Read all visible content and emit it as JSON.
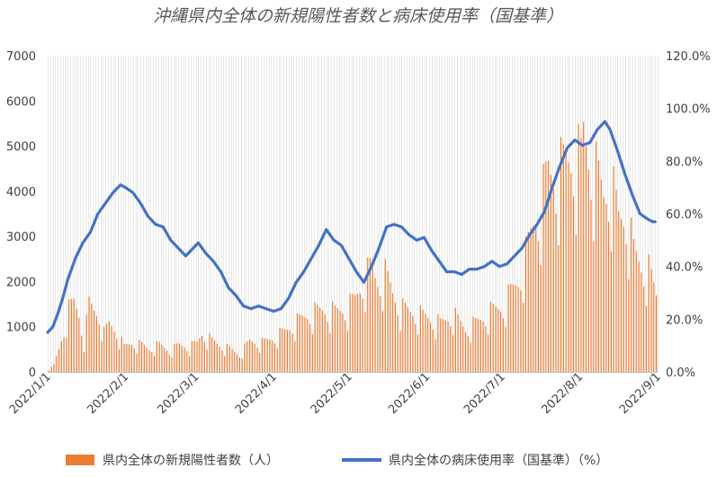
{
  "chart_data": {
    "type": "bar+line",
    "title": "沖縄県内全体の新規陽性者数と病床使用率（国基準）",
    "legend": {
      "position": "bottom",
      "entries": [
        "県内全体の新規陽性者数（人）",
        "県内全体の病床使用率（国基準）（%）"
      ]
    },
    "x_axis": {
      "start": "2022-01-01",
      "end": "2022-09-01",
      "tick_labels": [
        "2022/1/1",
        "2022/2/1",
        "2022/3/1",
        "2022/4/1",
        "2022/5/1",
        "2022/6/1",
        "2022/7/1",
        "2022/8/1",
        "2022/9/1"
      ]
    },
    "y_left": {
      "range": [
        0,
        7000
      ],
      "tick_labels": [
        "0",
        "1000",
        "2000",
        "3000",
        "4000",
        "5000",
        "6000",
        "7000"
      ]
    },
    "y_right": {
      "range": [
        0,
        120
      ],
      "tick_labels": [
        "0.0%",
        "20.0%",
        "40.0%",
        "60.0%",
        "80.0%",
        "100.0%",
        "120.0%"
      ]
    },
    "grid": "vertical",
    "colors": {
      "bars": "#ED7D31",
      "line": "#4472C4",
      "grid": "#D9D9D9",
      "text": "#595959"
    },
    "series": [
      {
        "name": "県内全体の新規陽性者数（人）",
        "kind": "bar",
        "axis": "left",
        "anchors": [
          [
            "2022-01-01",
            50
          ],
          [
            "2022-01-03",
            180
          ],
          [
            "2022-01-05",
            600
          ],
          [
            "2022-01-07",
            1100
          ],
          [
            "2022-01-09",
            1600
          ],
          [
            "2022-01-11",
            1800
          ],
          [
            "2022-01-13",
            1500
          ],
          [
            "2022-01-15",
            800
          ],
          [
            "2022-01-17",
            1750
          ],
          [
            "2022-01-19",
            1600
          ],
          [
            "2022-01-21",
            1500
          ],
          [
            "2022-01-23",
            1000
          ],
          [
            "2022-01-25",
            1250
          ],
          [
            "2022-01-28",
            1050
          ],
          [
            "2022-01-31",
            650
          ],
          [
            "2022-02-03",
            750
          ],
          [
            "2022-02-07",
            700
          ],
          [
            "2022-02-10",
            600
          ],
          [
            "2022-02-14",
            700
          ],
          [
            "2022-02-18",
            550
          ],
          [
            "2022-02-22",
            700
          ],
          [
            "2022-02-26",
            650
          ],
          [
            "2022-03-01",
            750
          ],
          [
            "2022-03-03",
            1000
          ],
          [
            "2022-03-06",
            850
          ],
          [
            "2022-03-10",
            700
          ],
          [
            "2022-03-14",
            600
          ],
          [
            "2022-03-18",
            450
          ],
          [
            "2022-03-22",
            800
          ],
          [
            "2022-03-27",
            750
          ],
          [
            "2022-04-01",
            900
          ],
          [
            "2022-04-05",
            1050
          ],
          [
            "2022-04-10",
            1300
          ],
          [
            "2022-04-15",
            1500
          ],
          [
            "2022-04-20",
            1600
          ],
          [
            "2022-04-25",
            1550
          ],
          [
            "2022-04-30",
            1650
          ],
          [
            "2022-05-03",
            1900
          ],
          [
            "2022-05-06",
            2300
          ],
          [
            "2022-05-09",
            2650
          ],
          [
            "2022-05-12",
            2350
          ],
          [
            "2022-05-15",
            2500
          ],
          [
            "2022-05-18",
            2050
          ],
          [
            "2022-05-21",
            1650
          ],
          [
            "2022-05-26",
            1550
          ],
          [
            "2022-06-01",
            1400
          ],
          [
            "2022-06-06",
            1250
          ],
          [
            "2022-06-11",
            1500
          ],
          [
            "2022-06-16",
            1100
          ],
          [
            "2022-06-21",
            1300
          ],
          [
            "2022-06-26",
            1550
          ],
          [
            "2022-07-01",
            1700
          ],
          [
            "2022-07-04",
            2050
          ],
          [
            "2022-07-07",
            2350
          ],
          [
            "2022-07-10",
            3000
          ],
          [
            "2022-07-13",
            3800
          ],
          [
            "2022-07-16",
            4300
          ],
          [
            "2022-07-19",
            5200
          ],
          [
            "2022-07-22",
            5000
          ],
          [
            "2022-07-26",
            5400
          ],
          [
            "2022-07-29",
            5550
          ],
          [
            "2022-08-01",
            5450
          ],
          [
            "2022-08-02",
            6150
          ],
          [
            "2022-08-04",
            5600
          ],
          [
            "2022-08-07",
            5100
          ],
          [
            "2022-08-10",
            4550
          ],
          [
            "2022-08-13",
            4850
          ],
          [
            "2022-08-16",
            3950
          ],
          [
            "2022-08-19",
            4050
          ],
          [
            "2022-08-22",
            3100
          ],
          [
            "2022-08-25",
            2750
          ],
          [
            "2022-08-28",
            2600
          ],
          [
            "2022-08-31",
            2000
          ]
        ]
      },
      {
        "name": "県内全体の病床使用率（国基準）（%）",
        "kind": "line",
        "axis": "right",
        "points": [
          [
            "2022-01-01",
            15
          ],
          [
            "2022-01-03",
            17
          ],
          [
            "2022-01-05",
            22
          ],
          [
            "2022-01-07",
            28
          ],
          [
            "2022-01-09",
            35
          ],
          [
            "2022-01-12",
            43
          ],
          [
            "2022-01-15",
            49
          ],
          [
            "2022-01-18",
            53
          ],
          [
            "2022-01-21",
            60
          ],
          [
            "2022-01-24",
            64
          ],
          [
            "2022-01-27",
            68
          ],
          [
            "2022-01-30",
            71
          ],
          [
            "2022-02-01",
            70
          ],
          [
            "2022-02-04",
            68
          ],
          [
            "2022-02-07",
            64
          ],
          [
            "2022-02-10",
            59
          ],
          [
            "2022-02-13",
            56
          ],
          [
            "2022-02-16",
            55
          ],
          [
            "2022-02-19",
            50
          ],
          [
            "2022-02-22",
            47
          ],
          [
            "2022-02-25",
            44
          ],
          [
            "2022-02-28",
            47
          ],
          [
            "2022-03-02",
            49
          ],
          [
            "2022-03-05",
            45
          ],
          [
            "2022-03-08",
            42
          ],
          [
            "2022-03-11",
            38
          ],
          [
            "2022-03-14",
            32
          ],
          [
            "2022-03-17",
            29
          ],
          [
            "2022-03-20",
            25
          ],
          [
            "2022-03-23",
            24
          ],
          [
            "2022-03-26",
            25
          ],
          [
            "2022-03-29",
            24
          ],
          [
            "2022-04-01",
            23
          ],
          [
            "2022-04-04",
            24
          ],
          [
            "2022-04-07",
            28
          ],
          [
            "2022-04-10",
            34
          ],
          [
            "2022-04-13",
            38
          ],
          [
            "2022-04-16",
            43
          ],
          [
            "2022-04-19",
            48
          ],
          [
            "2022-04-22",
            54
          ],
          [
            "2022-04-25",
            50
          ],
          [
            "2022-04-28",
            48
          ],
          [
            "2022-05-01",
            43
          ],
          [
            "2022-05-04",
            38
          ],
          [
            "2022-05-07",
            34
          ],
          [
            "2022-05-10",
            40
          ],
          [
            "2022-05-13",
            47
          ],
          [
            "2022-05-16",
            55
          ],
          [
            "2022-05-19",
            56
          ],
          [
            "2022-05-22",
            55
          ],
          [
            "2022-05-25",
            52
          ],
          [
            "2022-05-28",
            50
          ],
          [
            "2022-05-31",
            51
          ],
          [
            "2022-06-03",
            46
          ],
          [
            "2022-06-06",
            42
          ],
          [
            "2022-06-09",
            38
          ],
          [
            "2022-06-12",
            38
          ],
          [
            "2022-06-15",
            37
          ],
          [
            "2022-06-18",
            39
          ],
          [
            "2022-06-21",
            39
          ],
          [
            "2022-06-24",
            40
          ],
          [
            "2022-06-27",
            42
          ],
          [
            "2022-06-30",
            40
          ],
          [
            "2022-07-03",
            41
          ],
          [
            "2022-07-06",
            44
          ],
          [
            "2022-07-09",
            47
          ],
          [
            "2022-07-12",
            52
          ],
          [
            "2022-07-15",
            56
          ],
          [
            "2022-07-18",
            61
          ],
          [
            "2022-07-21",
            70
          ],
          [
            "2022-07-24",
            78
          ],
          [
            "2022-07-27",
            85
          ],
          [
            "2022-07-30",
            88
          ],
          [
            "2022-08-02",
            86
          ],
          [
            "2022-08-05",
            87
          ],
          [
            "2022-08-08",
            92
          ],
          [
            "2022-08-11",
            95
          ],
          [
            "2022-08-13",
            92
          ],
          [
            "2022-08-16",
            84
          ],
          [
            "2022-08-19",
            75
          ],
          [
            "2022-08-22",
            67
          ],
          [
            "2022-08-25",
            60
          ],
          [
            "2022-08-28",
            58
          ],
          [
            "2022-08-30",
            57
          ],
          [
            "2022-08-31",
            57
          ]
        ]
      }
    ]
  }
}
